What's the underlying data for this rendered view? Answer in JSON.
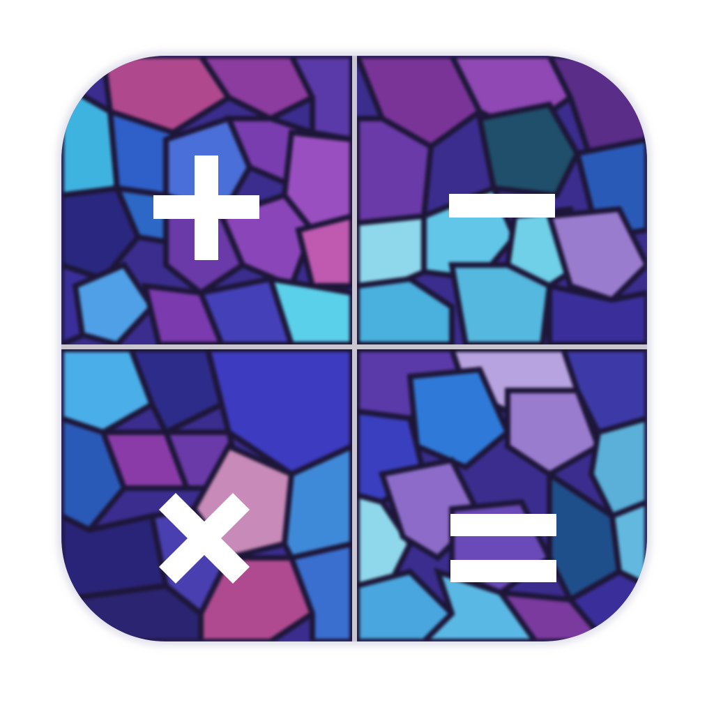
{
  "app_icon": {
    "name": "calculator",
    "background_style": "blurred cubes pattern",
    "colors": {
      "divider": "#c9c6cf",
      "symbol": "#ffffff",
      "cube_palette": [
        "#2b2470",
        "#3a2f9a",
        "#4a3fc0",
        "#6a3aa8",
        "#8c3fb0",
        "#b04a98",
        "#c65a8a",
        "#3d7fd6",
        "#4fa9e6",
        "#62c6e8",
        "#8fd8ec",
        "#9a7ccf",
        "#b7a3df",
        "#1f4f8a"
      ]
    },
    "quadrants": [
      {
        "operation": "add",
        "icon": "plus-icon"
      },
      {
        "operation": "subtract",
        "icon": "minus-icon"
      },
      {
        "operation": "multiply",
        "icon": "multiply-icon"
      },
      {
        "operation": "equals",
        "icon": "equals-icon"
      }
    ]
  }
}
